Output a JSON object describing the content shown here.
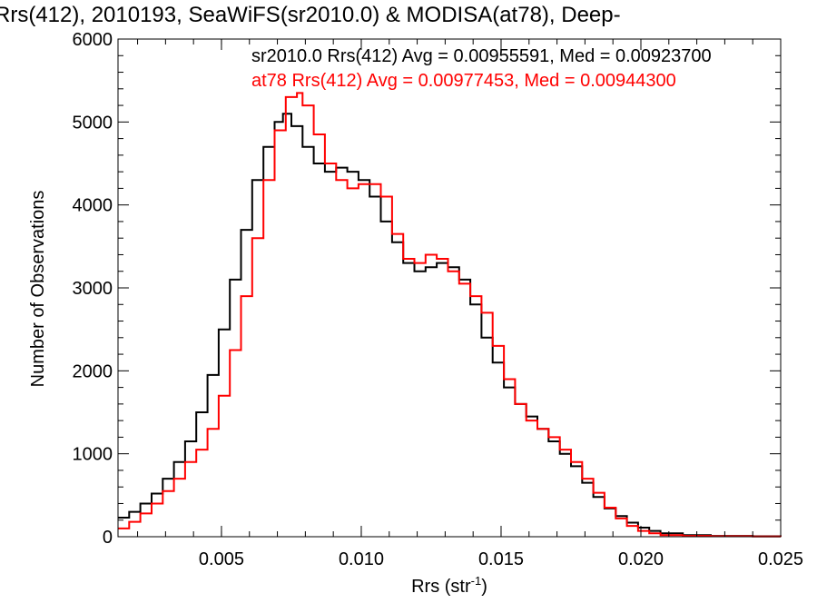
{
  "chart_data": {
    "type": "line",
    "title": "Rrs(412), 2010193, SeaWiFS(sr2010.0) & MODISA(at78), Deep-",
    "xlabel": "Rrs (str",
    "xlabel_sup": "-1",
    "xlabel_close": ")",
    "ylabel": "Number of Observations",
    "xlim": [
      0.0013,
      0.025
    ],
    "ylim": [
      0,
      6000
    ],
    "x_ticks": [
      0.005,
      0.01,
      0.015,
      0.02,
      0.025
    ],
    "x_tick_labels": [
      "0.005",
      "0.010",
      "0.015",
      "0.020",
      "0.025"
    ],
    "y_ticks": [
      0,
      1000,
      2000,
      3000,
      4000,
      5000,
      6000
    ],
    "y_tick_labels": [
      "0",
      "1000",
      "2000",
      "3000",
      "4000",
      "5000",
      "6000"
    ],
    "grid": false,
    "legend_position": "top",
    "series": [
      {
        "name": "sr2010.0 Rrs(412) Avg = 0.00955591, Med = 0.00923700",
        "color": "#000000",
        "x": [
          0.0013,
          0.0017,
          0.0021,
          0.0025,
          0.0029,
          0.0033,
          0.0037,
          0.0041,
          0.0045,
          0.0049,
          0.0053,
          0.0057,
          0.0061,
          0.0065,
          0.0069,
          0.0072,
          0.0075,
          0.0079,
          0.0083,
          0.0087,
          0.0091,
          0.0095,
          0.0099,
          0.0103,
          0.0107,
          0.0111,
          0.0115,
          0.0119,
          0.0123,
          0.0127,
          0.0131,
          0.0135,
          0.0139,
          0.0143,
          0.0147,
          0.0151,
          0.0155,
          0.0159,
          0.0163,
          0.0167,
          0.0171,
          0.0175,
          0.0179,
          0.0183,
          0.0187,
          0.0191,
          0.0195,
          0.0199,
          0.0203,
          0.0207,
          0.0215,
          0.0225,
          0.024,
          0.025
        ],
        "y": [
          230,
          300,
          400,
          520,
          700,
          900,
          1150,
          1500,
          1950,
          2500,
          3100,
          3700,
          4300,
          4700,
          5000,
          5100,
          4950,
          4700,
          4500,
          4400,
          4450,
          4400,
          4300,
          4100,
          3800,
          3550,
          3300,
          3200,
          3250,
          3300,
          3250,
          3100,
          2800,
          2400,
          2100,
          1800,
          1600,
          1450,
          1300,
          1150,
          1000,
          850,
          650,
          480,
          340,
          250,
          170,
          110,
          70,
          40,
          20,
          10,
          5,
          2
        ]
      },
      {
        "name": "at78 Rrs(412) Avg = 0.00977453, Med = 0.00944300",
        "color": "#ff0000",
        "x": [
          0.0013,
          0.0017,
          0.0021,
          0.0025,
          0.0029,
          0.0033,
          0.0037,
          0.0041,
          0.0045,
          0.0049,
          0.0053,
          0.0057,
          0.0061,
          0.0065,
          0.0069,
          0.0073,
          0.0077,
          0.0079,
          0.0083,
          0.0087,
          0.0091,
          0.0095,
          0.0099,
          0.0103,
          0.0107,
          0.0111,
          0.0115,
          0.0119,
          0.0123,
          0.0127,
          0.0131,
          0.0135,
          0.0139,
          0.0143,
          0.0147,
          0.0151,
          0.0155,
          0.0159,
          0.0163,
          0.0167,
          0.0171,
          0.0175,
          0.0179,
          0.0183,
          0.0187,
          0.0191,
          0.0195,
          0.0199,
          0.0203,
          0.0207,
          0.0215,
          0.0225,
          0.024,
          0.025
        ],
        "y": [
          100,
          180,
          280,
          400,
          550,
          700,
          900,
          1050,
          1300,
          1700,
          2250,
          2900,
          3600,
          4300,
          4900,
          5300,
          5350,
          5200,
          4850,
          4500,
          4300,
          4200,
          4250,
          4250,
          4100,
          3650,
          3350,
          3300,
          3400,
          3350,
          3200,
          3050,
          2900,
          2700,
          2300,
          1900,
          1600,
          1400,
          1300,
          1200,
          1050,
          900,
          700,
          530,
          350,
          220,
          130,
          70,
          40,
          20,
          10,
          5,
          2,
          1
        ]
      }
    ]
  }
}
